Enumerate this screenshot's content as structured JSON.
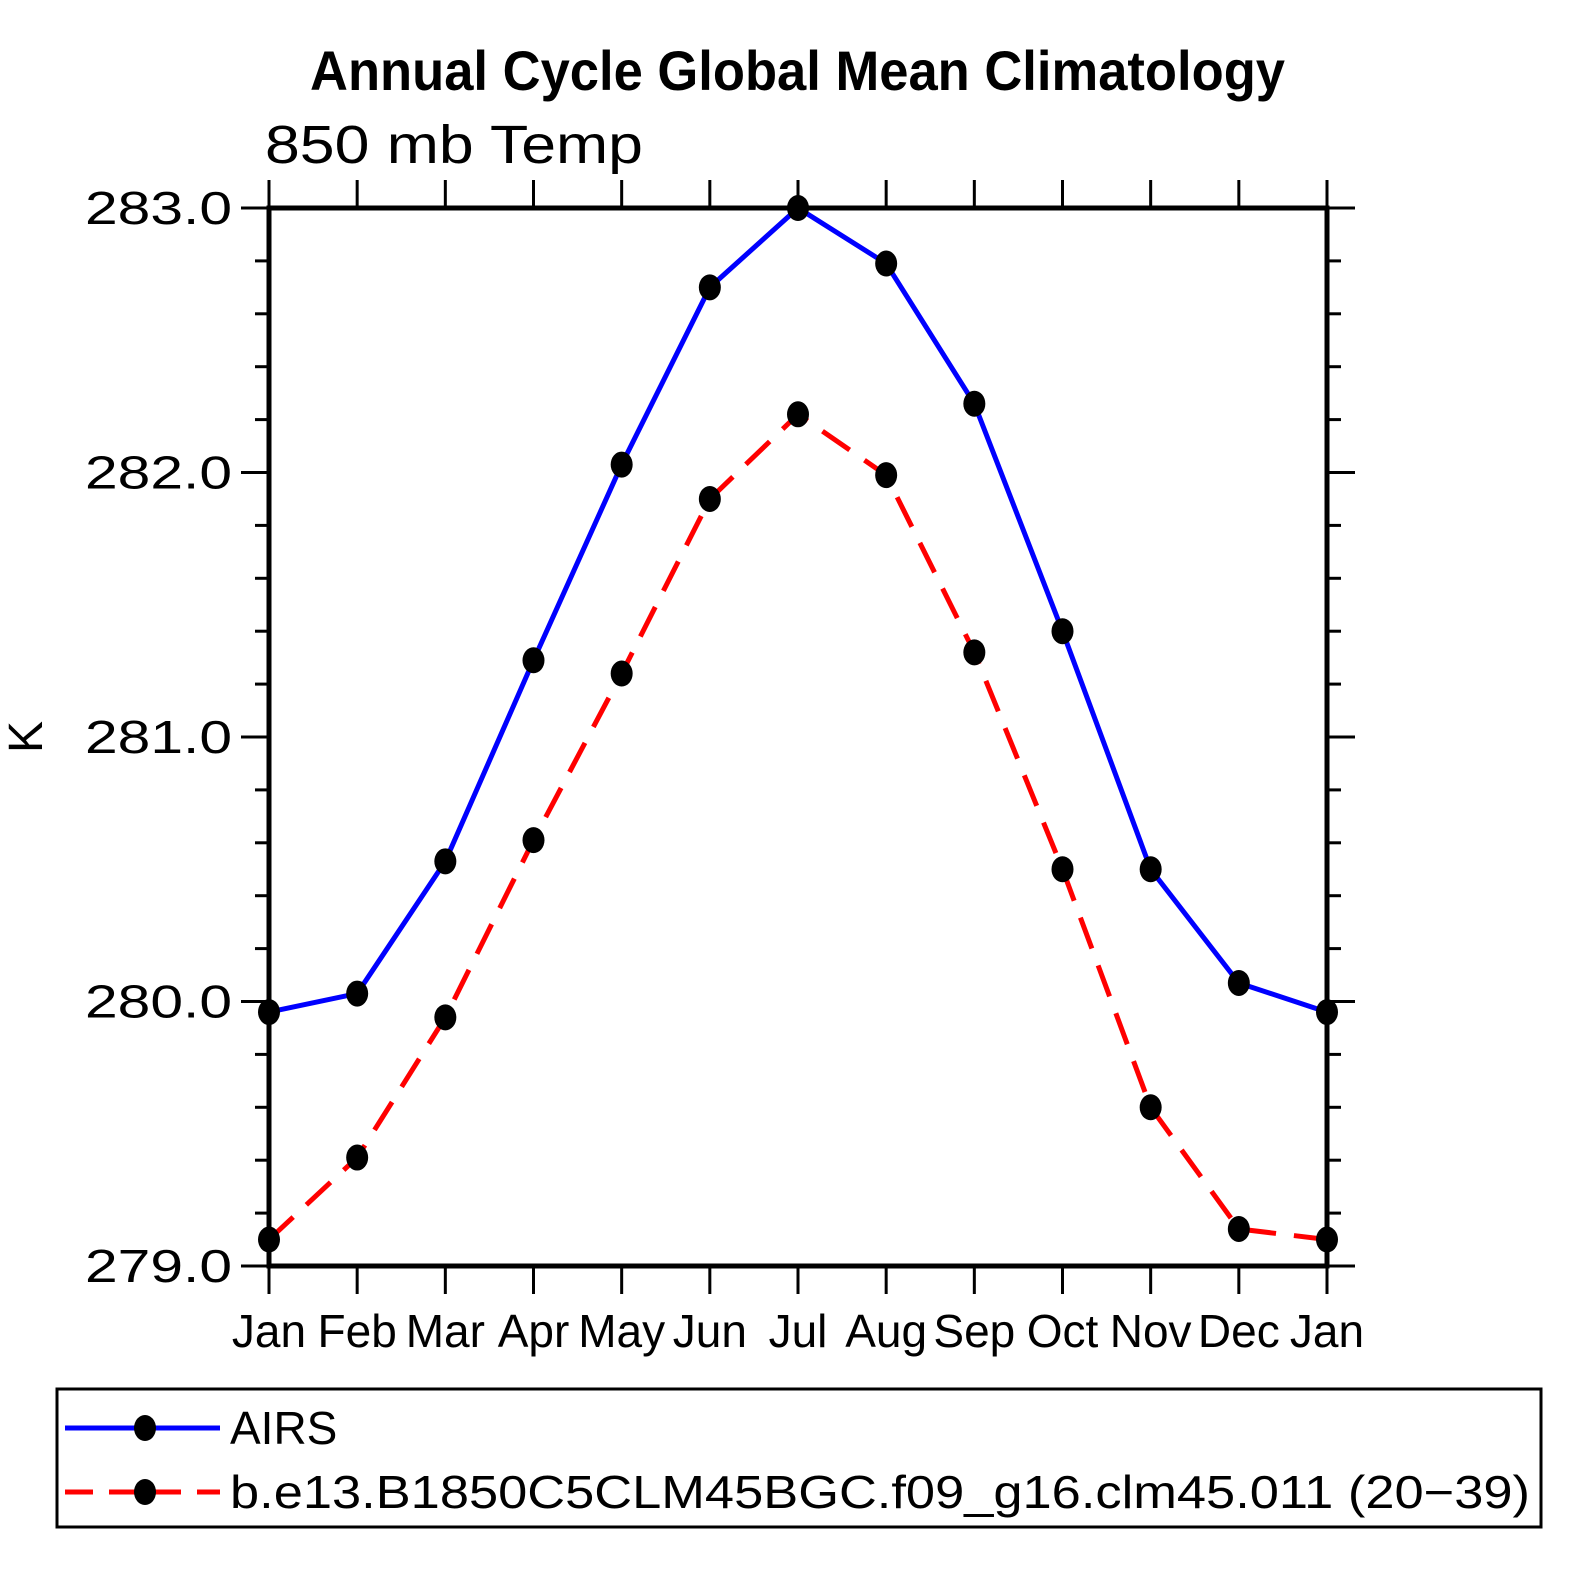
{
  "page": {
    "background": "#ffffff"
  },
  "chart_data": {
    "type": "line",
    "title": "Annual Cycle Global Mean Climatology",
    "subtitle": "850 mb Temp",
    "ylabel": "K",
    "xlabel": "",
    "categories": [
      "Jan",
      "Feb",
      "Mar",
      "Apr",
      "May",
      "Jun",
      "Jul",
      "Aug",
      "Sep",
      "Oct",
      "Nov",
      "Dec",
      "Jan"
    ],
    "ylim": [
      279.0,
      283.0
    ],
    "yticks_major": [
      283.0,
      282.0,
      281.0,
      280.0,
      279.0
    ],
    "ytick_labels": [
      "283.0",
      "282.0",
      "281.0",
      "280.0",
      "279.0"
    ],
    "ytick_minor_step": 0.2,
    "grid": false,
    "legend_position": "bottom-left-box",
    "axis_color": "#000000",
    "marker_color": "#000000",
    "series": [
      {
        "name": "AIRS",
        "color": "#0000ff",
        "line_style": "solid",
        "marker": "filled-circle",
        "values": [
          279.96,
          280.03,
          280.53,
          281.29,
          282.03,
          282.7,
          283.0,
          282.79,
          282.26,
          281.4,
          280.5,
          280.07,
          279.96
        ]
      },
      {
        "name": "b.e13.B1850C5CLM45BGC.f09_g16.clm45.011 (20−39)",
        "color": "#ff0000",
        "line_style": "dashed",
        "marker": "filled-circle",
        "values": [
          279.1,
          279.41,
          279.94,
          280.61,
          281.24,
          281.9,
          282.22,
          281.99,
          281.32,
          280.5,
          279.6,
          279.14,
          279.1
        ]
      }
    ]
  }
}
